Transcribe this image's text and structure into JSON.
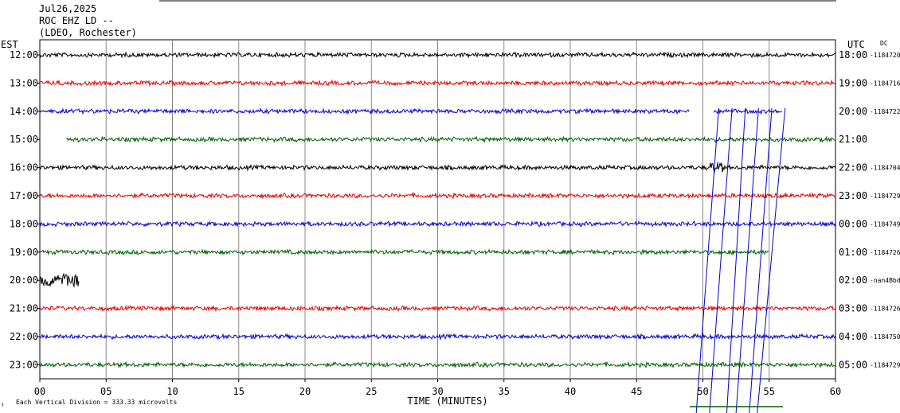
{
  "chart_data": {
    "type": "line",
    "header": {
      "date": "Jul26,2025",
      "station": "ROC EHZ LD --",
      "network": "(LDEO, Rochester)"
    },
    "left_label": "EST",
    "right_label": "UTC",
    "dc_label": "DC",
    "xlabel": "TIME (MINUTES)",
    "x_ticks": [
      "00",
      "05",
      "10",
      "15",
      "20",
      "25",
      "30",
      "35",
      "40",
      "45",
      "50",
      "55",
      "60"
    ],
    "xlim": [
      0,
      60
    ],
    "scale_note": "Each Vertical Division =  333.33 microvolts",
    "scale_glyph": "⚕",
    "colors": [
      "#000000",
      "#e00000",
      "#0000d0",
      "#006000"
    ],
    "rows": [
      {
        "est": "12:00",
        "utc": "18:00",
        "dc": "-1184720",
        "start": 0,
        "end": 60
      },
      {
        "est": "13:00",
        "utc": "19:00",
        "dc": "-1184716",
        "start": 0,
        "end": 60
      },
      {
        "est": "14:00",
        "utc": "20:00",
        "dc": "-1184722",
        "start": 0,
        "end": 49,
        "extra": [
          50.8,
          56
        ]
      },
      {
        "est": "15:00",
        "utc": "21:00",
        "dc": "",
        "start": 2,
        "end": 60
      },
      {
        "est": "16:00",
        "utc": "22:00",
        "dc": "-1184704",
        "start": 0,
        "end": 60,
        "event": 51
      },
      {
        "est": "17:00",
        "utc": "23:00",
        "dc": "-1184729",
        "start": 0,
        "end": 60
      },
      {
        "est": "18:00",
        "utc": "00:00",
        "dc": "-1184749",
        "start": 0,
        "end": 60
      },
      {
        "est": "19:00",
        "utc": "01:00",
        "dc": "-1184726",
        "start": 0,
        "end": 55
      },
      {
        "est": "20:00",
        "utc": "02:00",
        "dc": "-nan4Bbd",
        "start": 0,
        "end": 3,
        "noisy": true
      },
      {
        "est": "21:00",
        "utc": "03:00",
        "dc": "-1184726",
        "start": 0,
        "end": 60
      },
      {
        "est": "22:00",
        "utc": "04:00",
        "dc": "-1184750",
        "start": 0,
        "end": 60
      },
      {
        "est": "23:00",
        "utc": "05:00",
        "dc": "-1184729",
        "start": 0,
        "end": 60
      }
    ],
    "diagonal_lines_minutes": [
      [
        49.5,
        51.2
      ],
      [
        50.5,
        52.2
      ],
      [
        51.8,
        53.2
      ],
      [
        52.5,
        54.2
      ],
      [
        53.5,
        55.2
      ],
      [
        54.1,
        56.2
      ]
    ],
    "grid": true
  }
}
